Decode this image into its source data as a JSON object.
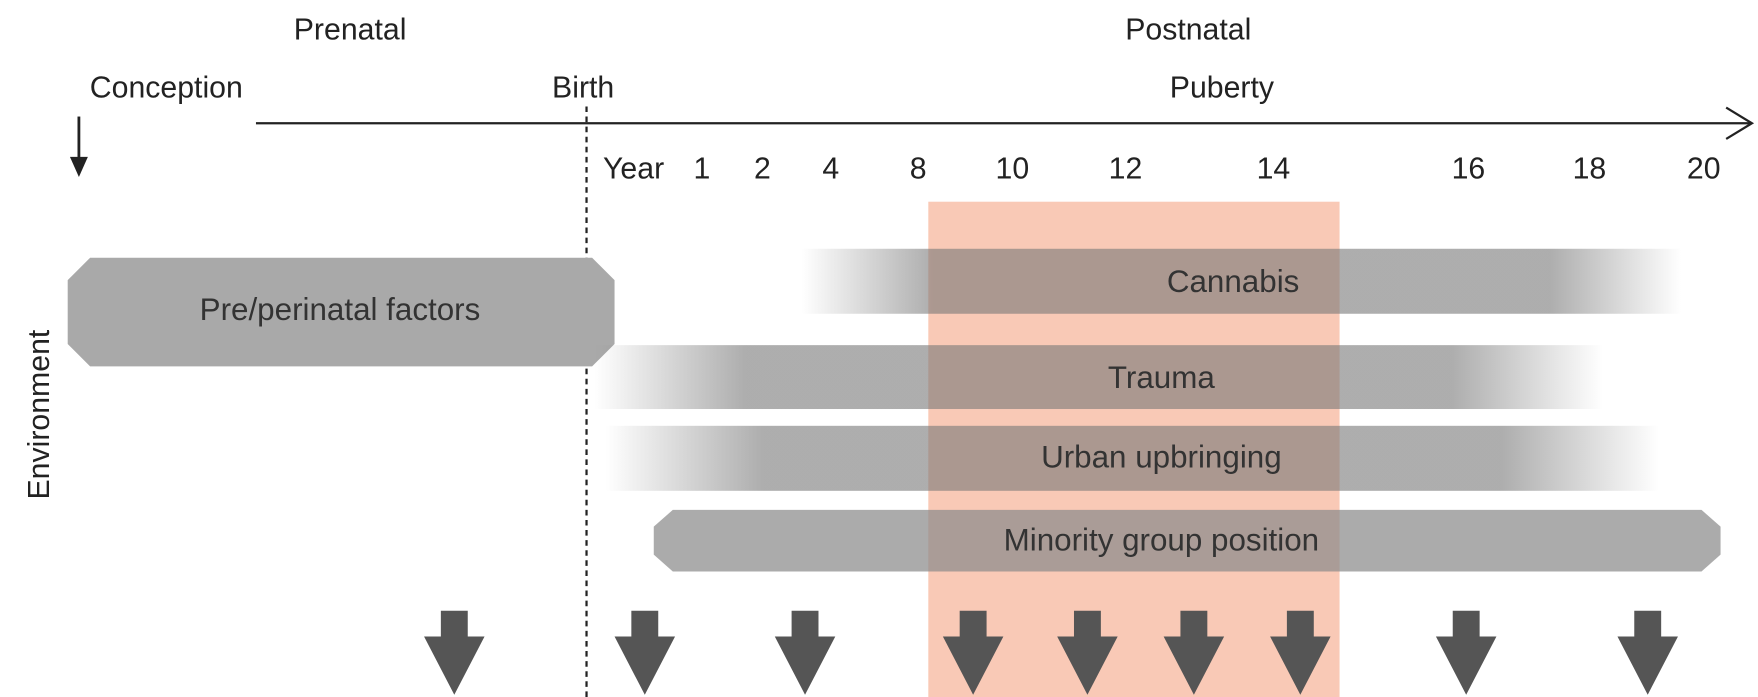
{
  "header": {
    "prenatal": "Prenatal",
    "postnatal": "Postnatal",
    "conception": "Conception",
    "birth": "Birth",
    "puberty": "Puberty"
  },
  "ages": [
    "Year",
    "1",
    "2",
    "4",
    "8",
    "10",
    "12",
    "14",
    "16",
    "18",
    "20"
  ],
  "side_label": "Environment",
  "factors": [
    "Pre/perinatal factors",
    "Cannabis",
    "Trauma",
    "Urban upbringing",
    "Minority group position"
  ]
}
